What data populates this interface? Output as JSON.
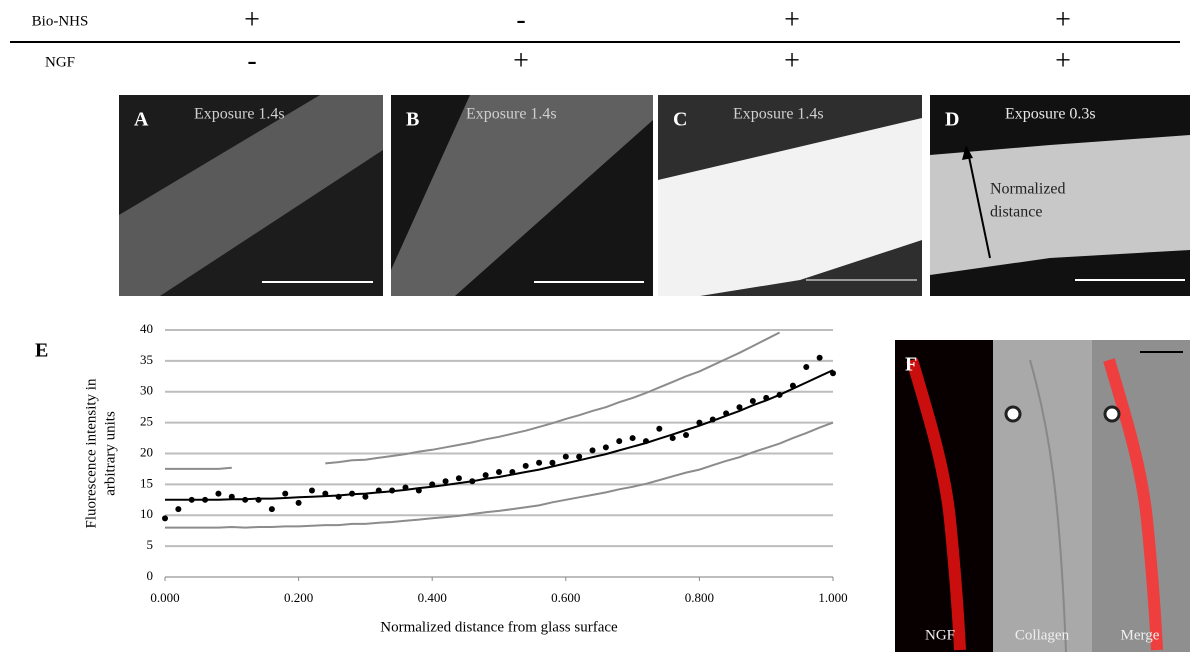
{
  "header": {
    "rows": [
      {
        "label": "Bio-NHS",
        "cells": [
          "+",
          "-",
          "+",
          "+"
        ]
      },
      {
        "label": "NGF",
        "cells": [
          "-",
          "+",
          "+",
          "+"
        ]
      }
    ]
  },
  "panels": [
    {
      "letter": "A",
      "caption": "Exposure 1.4s"
    },
    {
      "letter": "B",
      "caption": "Exposure 1.4s"
    },
    {
      "letter": "C",
      "caption": "Exposure 1.4s"
    },
    {
      "letter": "D",
      "caption": "Exposure 0.3s",
      "annotation": [
        "Normalized",
        "distance"
      ]
    }
  ],
  "chart_data": {
    "type": "scatter",
    "panel_label": "E",
    "x_label": "Normalized distance from glass surface",
    "y_label": [
      "Fluorescence intensity in",
      "arbitrary units"
    ],
    "xlim": [
      0,
      1
    ],
    "ylim": [
      0,
      40
    ],
    "xticks": [
      {
        "value": 0,
        "label": "0.000"
      },
      {
        "value": 0.2,
        "label": "0.200"
      },
      {
        "value": 0.4,
        "label": "0.400"
      },
      {
        "value": 0.6,
        "label": "0.600"
      },
      {
        "value": 0.8,
        "label": "0.800"
      },
      {
        "value": 1,
        "label": "1.000"
      }
    ],
    "yticks": [
      0,
      5,
      10,
      15,
      20,
      25,
      30,
      35,
      40
    ],
    "grid": true,
    "x": [
      0,
      0.02,
      0.04,
      0.06,
      0.08,
      0.1,
      0.12,
      0.14,
      0.16,
      0.18,
      0.2,
      0.22,
      0.24,
      0.26,
      0.28,
      0.3,
      0.32,
      0.34,
      0.36,
      0.38,
      0.4,
      0.42,
      0.44,
      0.46,
      0.48,
      0.5,
      0.52,
      0.54,
      0.56,
      0.58,
      0.6,
      0.62,
      0.64,
      0.66,
      0.68,
      0.7,
      0.72,
      0.74,
      0.76,
      0.78,
      0.8,
      0.82,
      0.84,
      0.86,
      0.88,
      0.9,
      0.92,
      0.94,
      0.96,
      0.98,
      1
    ],
    "series": [
      {
        "style": "markers",
        "color": "#000000",
        "values": [
          9.5,
          11,
          12.5,
          12.5,
          13.5,
          13,
          12.5,
          12.5,
          11,
          13.5,
          12,
          14,
          13.5,
          13,
          13.5,
          13,
          14,
          14,
          14.5,
          14,
          15,
          15.5,
          16,
          15.5,
          16.5,
          17,
          17,
          18,
          18.5,
          18.5,
          19.5,
          19.5,
          20.5,
          21,
          22,
          22.5,
          22,
          24,
          22.5,
          23,
          25,
          25.5,
          26.5,
          27.5,
          28.5,
          29,
          29.5,
          31,
          34,
          35.5,
          33
        ]
      },
      {
        "style": "line",
        "color": "#000000",
        "values": [
          12.5,
          12.5,
          12.5,
          12.5,
          12.5,
          12.6,
          12.6,
          12.7,
          12.7,
          12.8,
          12.9,
          13.0,
          13.1,
          13.2,
          13.4,
          13.5,
          13.7,
          13.9,
          14.1,
          14.4,
          14.6,
          14.9,
          15.2,
          15.5,
          15.9,
          16.2,
          16.6,
          17.0,
          17.4,
          17.9,
          18.4,
          18.9,
          19.4,
          19.9,
          20.5,
          21.1,
          21.7,
          22.4,
          23.1,
          23.8,
          24.5,
          25.3,
          26.1,
          26.9,
          27.8,
          28.6,
          29.5,
          30.5,
          31.5,
          32.5,
          33.5
        ]
      },
      {
        "style": "line",
        "color": "#8c8c8c",
        "values": [
          17.5,
          17.5,
          17.5,
          17.5,
          17.5,
          17.7,
          null,
          null,
          null,
          null,
          null,
          null,
          18.4,
          18.6,
          18.9,
          19.0,
          19.3,
          19.6,
          19.9,
          20.3,
          20.6,
          21.0,
          21.4,
          21.8,
          22.3,
          22.7,
          23.2,
          23.7,
          24.3,
          24.9,
          25.6,
          26.2,
          26.9,
          27.5,
          28.3,
          29.0,
          29.8,
          30.7,
          31.6,
          32.5,
          33.3,
          34.3,
          35.3,
          36.3,
          37.4,
          38.5,
          39.6,
          null,
          null,
          null,
          null
        ]
      },
      {
        "style": "line",
        "color": "#8c8c8c",
        "values": [
          8.0,
          8.0,
          8.0,
          8.0,
          8.0,
          8.1,
          8.0,
          8.1,
          8.1,
          8.2,
          8.2,
          8.3,
          8.4,
          8.4,
          8.6,
          8.6,
          8.8,
          8.9,
          9.1,
          9.3,
          9.5,
          9.7,
          9.9,
          10.2,
          10.5,
          10.7,
          11.0,
          11.3,
          11.6,
          12.1,
          12.5,
          12.9,
          13.3,
          13.7,
          14.2,
          14.6,
          15.1,
          15.7,
          16.3,
          16.9,
          17.4,
          18.1,
          18.8,
          19.4,
          20.2,
          20.9,
          21.6,
          22.5,
          23.3,
          24.2,
          25.0
        ]
      }
    ]
  },
  "panel_f": {
    "letter": "F",
    "labels": [
      "NGF",
      "Collagen",
      "Merge"
    ]
  }
}
